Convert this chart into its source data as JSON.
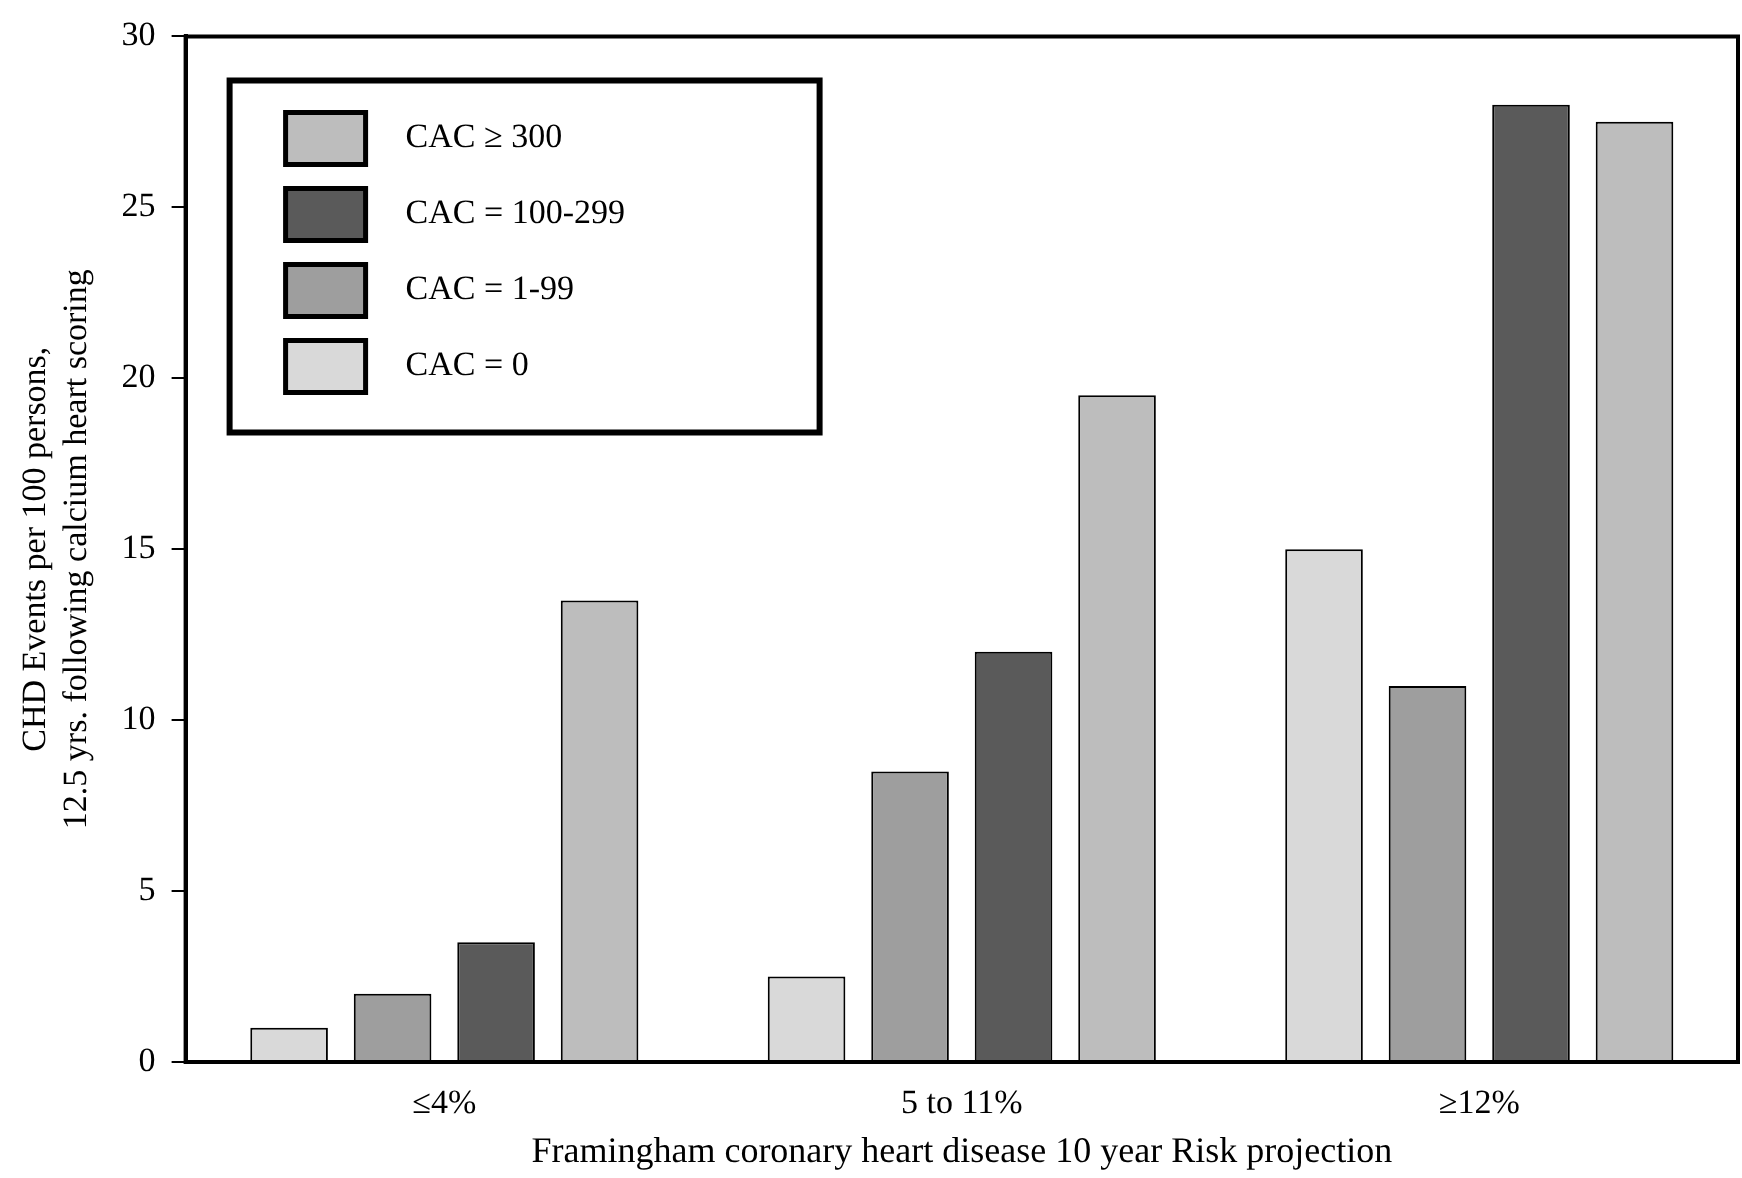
{
  "chart_data": {
    "type": "bar",
    "xlabel": "Framingham coronary heart disease 10 year Risk projection",
    "ylabel": "CHD Events per 100 persons,\n12.5 yrs. following calcium heart scoring",
    "categories": [
      "≤4%",
      "5 to 11%",
      "≥12%"
    ],
    "series": [
      {
        "name": "CAC = 0",
        "color": "#d9d9d9",
        "values": [
          1,
          2.5,
          15
        ]
      },
      {
        "name": "CAC = 1-99",
        "color": "#9e9e9e",
        "values": [
          2,
          8.5,
          11
        ]
      },
      {
        "name": "CAC = 100-299",
        "color": "#5a5a5a",
        "values": [
          3.5,
          12,
          28
        ]
      },
      {
        "name": "CAC ≥ 300",
        "color": "#bdbdbd",
        "values": [
          13.5,
          19.5,
          27.5
        ]
      }
    ],
    "ylim": [
      0,
      30
    ],
    "yticks": [
      0,
      5,
      10,
      15,
      20,
      25,
      30
    ],
    "grid": false,
    "legend": "top left"
  }
}
